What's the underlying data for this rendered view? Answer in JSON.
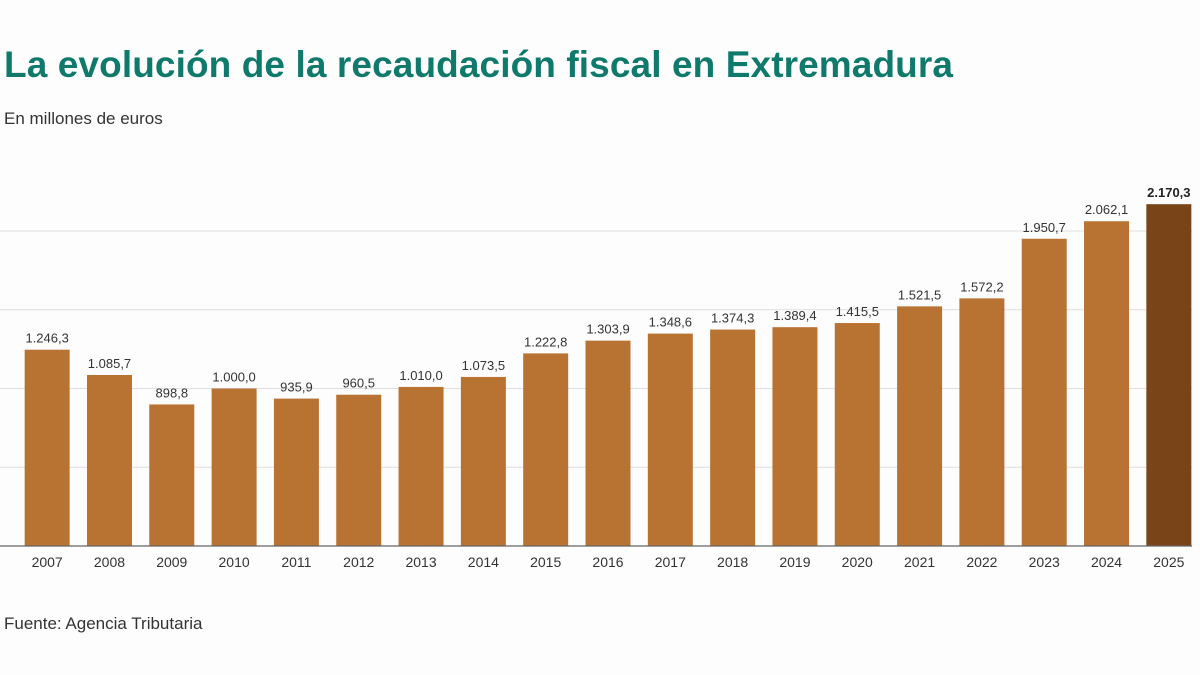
{
  "chart_data": {
    "type": "bar",
    "title": "La evolución de la recaudación fiscal en Extremadura",
    "subtitle": "En millones de euros",
    "source": "Fuente: Agencia Tributaria",
    "xlabel": "",
    "ylabel": "",
    "ylim": [
      0,
      2170.3
    ],
    "gridlines": [
      500,
      1000,
      1500,
      2000
    ],
    "grid": true,
    "categories": [
      "2007",
      "2008",
      "2009",
      "2010",
      "2011",
      "2012",
      "2013",
      "2014",
      "2015",
      "2016",
      "2017",
      "2018",
      "2019",
      "2020",
      "2021",
      "2022",
      "2023",
      "2024",
      "2025"
    ],
    "values": [
      1246.3,
      1085.7,
      898.8,
      1000.0,
      935.9,
      960.5,
      1010.0,
      1073.5,
      1222.8,
      1303.9,
      1348.6,
      1374.3,
      1389.4,
      1415.5,
      1521.5,
      1572.2,
      1950.7,
      2062.1,
      2170.3
    ],
    "value_labels": [
      "1.246,3",
      "1.085,7",
      "898,8",
      "1.000,0",
      "935,9",
      "960,5",
      "1.010,0",
      "1.073,5",
      "1.222,8",
      "1.303,9",
      "1.348,6",
      "1.374,3",
      "1.389,4",
      "1.415,5",
      "1.521,5",
      "1.572,2",
      "1.950,7",
      "2.062,1",
      "2.170,3"
    ],
    "highlight_index": 18,
    "colors": {
      "bar": "#b87333",
      "highlight": "#7a4419",
      "title": "#0f7a6c"
    }
  }
}
